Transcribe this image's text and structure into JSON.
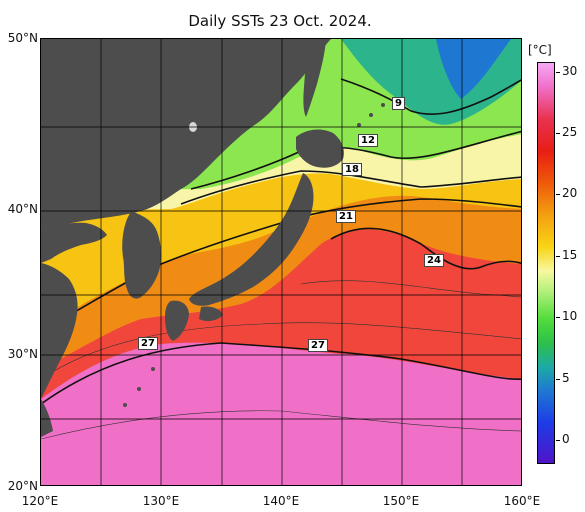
{
  "title": "Daily SSTs 23 Oct. 2024.",
  "unit": "[°C]",
  "colorbar_ticks": [
    "30",
    "25",
    "20",
    "15",
    "10",
    "5",
    "0"
  ],
  "latitude_labels": [
    "50°N",
    "40°N",
    "30°N",
    "20°N"
  ],
  "longitude_labels": [
    "120°E",
    "130°E",
    "140°E",
    "150°E",
    "160°E"
  ],
  "isotherm_labels": [
    "9",
    "12",
    "18",
    "21",
    "24",
    "27",
    "27"
  ],
  "colors": {
    "land": "#4d4d4d",
    "sst_cold": "#1e78d2",
    "sst_mid": "#f8d414",
    "sst_warm": "#e81e14",
    "sst_hot": "#f070c8"
  }
}
